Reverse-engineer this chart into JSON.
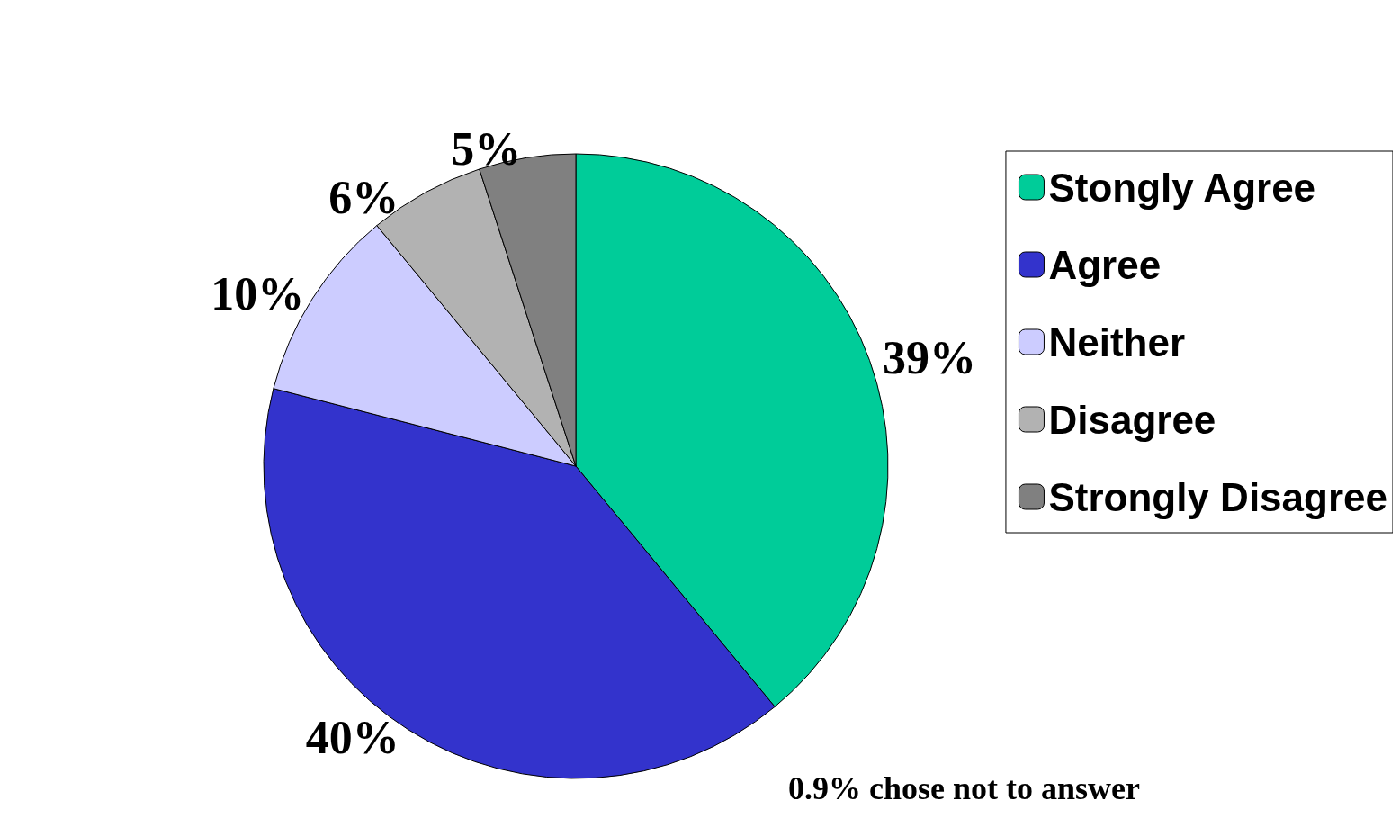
{
  "chart_data": {
    "type": "pie",
    "categories": [
      "Stongly Agree",
      "Agree",
      "Neither",
      "Disagree",
      "Strongly Disagree"
    ],
    "values": [
      39,
      40,
      10,
      6,
      5
    ],
    "colors": [
      "#00cc99",
      "#3333cc",
      "#ccccff",
      "#b2b2b2",
      "#808080"
    ],
    "value_labels": [
      "39%",
      "40%",
      "10%",
      "6%",
      "5%"
    ],
    "legend": "right",
    "annotations": [
      "0.9% chose not to answer"
    ]
  }
}
